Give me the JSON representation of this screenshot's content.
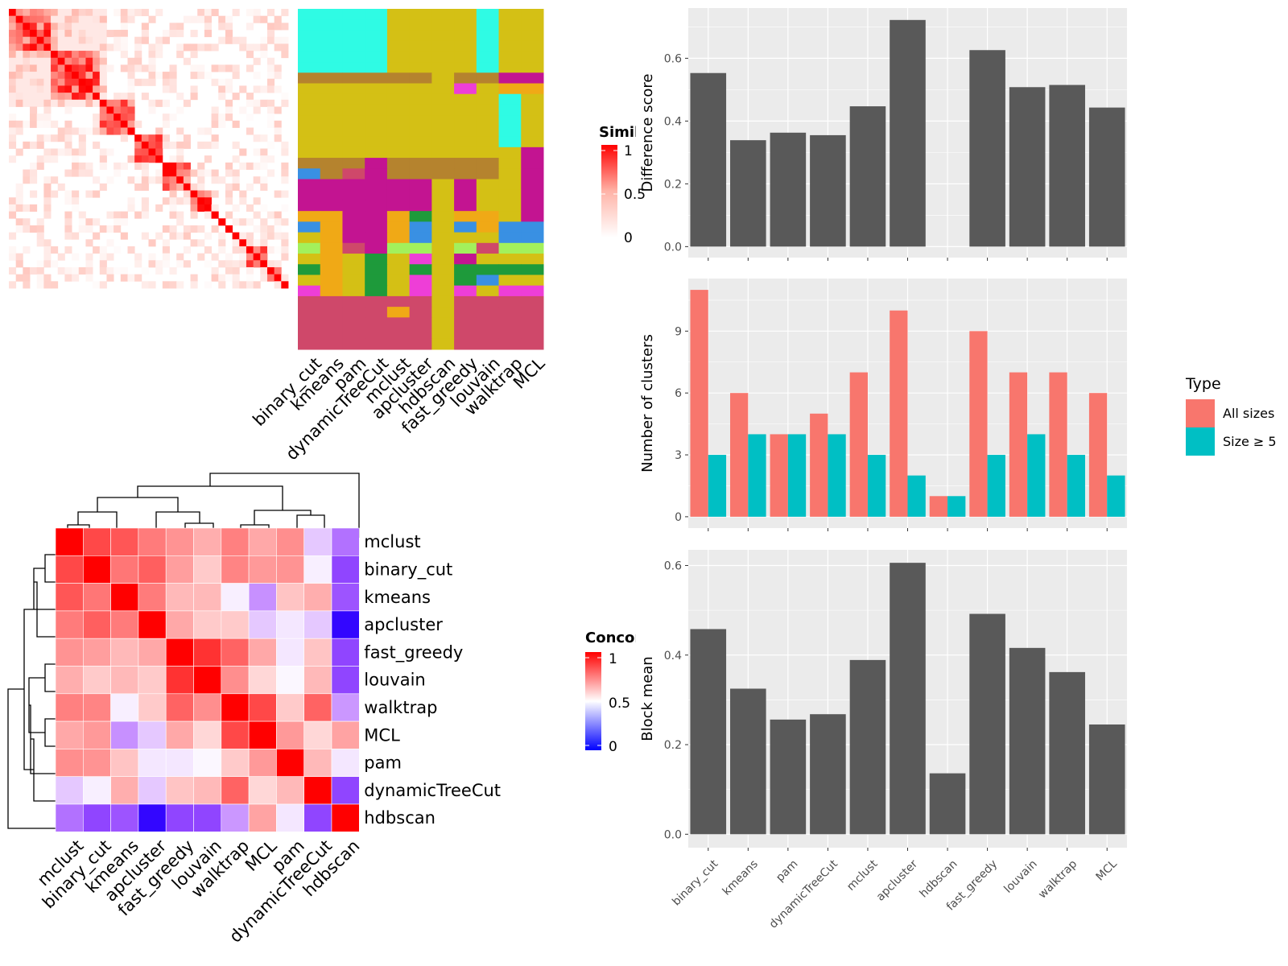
{
  "chart_data": [
    {
      "type": "heatmap",
      "name": "similarity-matrix",
      "size": 40,
      "blocks": [
        0,
        0,
        0,
        0,
        0,
        0,
        1,
        1,
        1,
        1,
        1,
        1,
        1,
        2,
        2,
        2,
        2,
        2,
        3,
        3,
        3,
        3,
        4,
        4,
        4,
        4,
        5,
        5,
        5,
        6,
        7,
        8,
        9,
        10,
        11,
        11,
        11,
        12,
        12,
        13
      ],
      "legend": {
        "title": "Similarity",
        "ticks": [
          "1",
          "0.5",
          "0"
        ]
      }
    },
    {
      "type": "heatmap",
      "name": "cluster-assignment-matrix",
      "methods": [
        "binary_cut",
        "kmeans",
        "pam",
        "dynamicTreeCut",
        "mclust",
        "apcluster",
        "hdbscan",
        "fast_greedy",
        "louvain",
        "walktrap",
        "MCL"
      ],
      "colors": {
        "a": "#2ffbe4",
        "b": "#d4c015",
        "c": "#b5832e",
        "d": "#c31491",
        "e": "#ee3ed7",
        "f": "#f0a916",
        "g": "#cf486a",
        "h": "#3990e3",
        "i": "#a3f05c",
        "j": "#1e9a3b",
        "k": "#ed9a1e"
      },
      "rows": [
        "aaaabbbbabb",
        "aaaabbbbabb",
        "aaaabbbbabb",
        "aaaabbbbabb",
        "aaaabbbbabb",
        "aaaabbbbabb",
        "ccccccbccdd",
        "bbbbbbbebff",
        "bbbbbbbbbab",
        "bbbbbbbbbab",
        "bbbbbbbbbab",
        "bbbbbbbbbab",
        "bbbbbbbbbab",
        "bbbbbbbbbbd",
        "cccdcccccbd",
        "hcgdcccccbd",
        "ddddddbdbbd",
        "ddddddbdbbd",
        "ddddddbdbbd",
        "ffddfjbffbd",
        "hfddfhbhfhh",
        "bfddfhbbbhh",
        "ifgdiibigii",
        "bfbjbebdbbb",
        "jfbjbjbjjjj",
        "bfbjbebjhbb",
        "efbjbebebee",
        "ggggggbgggg",
        "ggggfgbgggg",
        "ggggggbgggg",
        "ggggggbgggg",
        "ggggggbgggg"
      ],
      "xlabels": [
        "binary_cut",
        "kmeans",
        "pam",
        "dynamicTreeCut",
        "mclust",
        "apcluster",
        "hdbscan",
        "fast_greedy",
        "louvain",
        "walktrap",
        "MCL"
      ]
    },
    {
      "type": "bar",
      "name": "difference-score",
      "categories": [
        "binary_cut",
        "kmeans",
        "pam",
        "dynamicTreeCut",
        "mclust",
        "apcluster",
        "hdbscan",
        "fast_greedy",
        "louvain",
        "walktrap",
        "MCL"
      ],
      "values": [
        0.553,
        0.339,
        0.363,
        0.355,
        0.447,
        0.722,
        null,
        0.626,
        0.508,
        0.515,
        0.443
      ],
      "ylabel": "Difference score",
      "ylim": [
        -0.035,
        0.76
      ],
      "yticks": [
        0.0,
        0.2,
        0.4,
        0.6
      ],
      "ytick_labels": [
        "0.0",
        "0.2",
        "0.4",
        "0.6"
      ],
      "bar_color": "#595959",
      "grid": true
    },
    {
      "type": "bar",
      "name": "number-of-clusters",
      "categories": [
        "binary_cut",
        "kmeans",
        "pam",
        "dynamicTreeCut",
        "mclust",
        "apcluster",
        "hdbscan",
        "fast_greedy",
        "louvain",
        "walktrap",
        "MCL"
      ],
      "series": [
        {
          "name": "All sizes",
          "color": "#f8766d",
          "values": [
            11,
            6,
            4,
            5,
            7,
            10,
            1,
            9,
            7,
            7,
            6
          ]
        },
        {
          "name": "Size ≥ 5",
          "color": "#00bfc4",
          "values": [
            3,
            4,
            4,
            4,
            3,
            2,
            1,
            3,
            4,
            3,
            2
          ]
        }
      ],
      "ylabel": "Number of clusters",
      "ylim": [
        -0.55,
        11.55
      ],
      "yticks": [
        0,
        3,
        6,
        9
      ],
      "ytick_labels": [
        "0",
        "3",
        "6",
        "9"
      ],
      "legend": {
        "title": "Type",
        "position": "right"
      },
      "grid": true
    },
    {
      "type": "bar",
      "name": "block-mean",
      "categories": [
        "binary_cut",
        "kmeans",
        "pam",
        "dynamicTreeCut",
        "mclust",
        "apcluster",
        "hdbscan",
        "fast_greedy",
        "louvain",
        "walktrap",
        "MCL"
      ],
      "values": [
        0.458,
        0.325,
        0.256,
        0.268,
        0.389,
        0.606,
        0.136,
        0.492,
        0.416,
        0.362,
        0.245
      ],
      "ylabel": "Block mean",
      "ylim": [
        -0.03,
        0.635
      ],
      "yticks": [
        0.0,
        0.2,
        0.4,
        0.6
      ],
      "ytick_labels": [
        "0.0",
        "0.2",
        "0.4",
        "0.6"
      ],
      "bar_color": "#595959",
      "grid": true
    },
    {
      "type": "heatmap",
      "name": "concordance-matrix",
      "labels": [
        "mclust",
        "binary_cut",
        "kmeans",
        "apcluster",
        "fast_greedy",
        "louvain",
        "walktrap",
        "MCL",
        "pam",
        "dynamicTreeCut",
        "hdbscan"
      ],
      "values": [
        [
          1.0,
          0.83,
          0.8,
          0.72,
          0.67,
          0.62,
          0.71,
          0.63,
          0.68,
          0.43,
          0.3
        ],
        [
          0.83,
          1.0,
          0.73,
          0.78,
          0.65,
          0.57,
          0.7,
          0.66,
          0.67,
          0.48,
          0.22
        ],
        [
          0.8,
          0.73,
          1.0,
          0.72,
          0.6,
          0.6,
          0.48,
          0.35,
          0.58,
          0.62,
          0.25
        ],
        [
          0.72,
          0.78,
          0.72,
          1.0,
          0.63,
          0.57,
          0.57,
          0.43,
          0.47,
          0.43,
          0.05
        ],
        [
          0.67,
          0.65,
          0.6,
          0.63,
          1.0,
          0.88,
          0.77,
          0.63,
          0.47,
          0.58,
          0.22
        ],
        [
          0.62,
          0.57,
          0.6,
          0.57,
          0.88,
          1.0,
          0.68,
          0.55,
          0.49,
          0.6,
          0.22
        ],
        [
          0.71,
          0.7,
          0.48,
          0.57,
          0.77,
          0.68,
          1.0,
          0.83,
          0.57,
          0.77,
          0.36
        ],
        [
          0.63,
          0.66,
          0.35,
          0.43,
          0.63,
          0.55,
          0.83,
          1.0,
          0.66,
          0.55,
          0.64
        ],
        [
          0.68,
          0.67,
          0.58,
          0.47,
          0.47,
          0.49,
          0.57,
          0.66,
          1.0,
          0.6,
          0.47
        ],
        [
          0.43,
          0.48,
          0.62,
          0.43,
          0.58,
          0.6,
          0.77,
          0.55,
          0.6,
          1.0,
          0.22
        ],
        [
          0.3,
          0.22,
          0.25,
          0.05,
          0.22,
          0.22,
          0.36,
          0.64,
          0.47,
          0.22,
          1.0
        ]
      ],
      "legend": {
        "title": "Concordance",
        "ticks": [
          "1",
          "0.5",
          "0"
        ]
      }
    }
  ]
}
